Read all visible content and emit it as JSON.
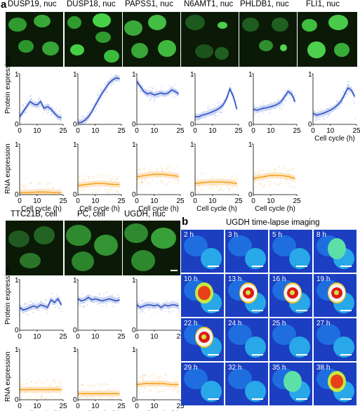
{
  "panel_a": {
    "letter": "a"
  },
  "panel_b": {
    "letter": "b",
    "title": "UGDH time-lapse imaging"
  },
  "genes_row1": [
    "DUSP19, nuc",
    "DUSP18, nuc",
    "PAPSS1, nuc",
    "N6AMT1, nuc",
    "PHLDB1, nuc",
    "FLI1, nuc"
  ],
  "genes_row2": [
    "TTC21B, cell",
    "PC, cell",
    "UGDH, nuc"
  ],
  "axis": {
    "protein_label": "Protein expression",
    "rna_label": "RNA expression",
    "x_label": "Cell cycle (h)",
    "y_ticks": [
      "0",
      "1"
    ],
    "x_ticks": [
      "0",
      "10",
      "25"
    ]
  },
  "timelapse": [
    "2 h",
    "3 h",
    "5 h",
    "8 h",
    "10 h",
    "13 h",
    "16 h",
    "19 h",
    "22 h",
    "24 h",
    "25 h",
    "27 h",
    "29 h",
    "32 h",
    "35 h",
    "38 h"
  ],
  "colors": {
    "protein": "#2b4fc4",
    "protein_light": "#a9b8ea",
    "rna": "#f7a21b",
    "rna_light": "#fbd49a",
    "micro_green": "#3cc43c"
  },
  "chart_data": [
    {
      "type": "line",
      "gene": "DUSP19, nuc",
      "metric": "Protein expression",
      "x": [
        0,
        2,
        4,
        6,
        8,
        10,
        12,
        14,
        16,
        18,
        20,
        22,
        24
      ],
      "y": [
        0.15,
        0.25,
        0.35,
        0.45,
        0.4,
        0.38,
        0.45,
        0.32,
        0.35,
        0.3,
        0.22,
        0.15,
        0.13
      ],
      "xlim": [
        0,
        25
      ],
      "ylim": [
        0,
        1
      ]
    },
    {
      "type": "line",
      "gene": "DUSP18, nuc",
      "metric": "Protein expression",
      "x": [
        0,
        2,
        4,
        6,
        8,
        10,
        12,
        14,
        16,
        18,
        20,
        22,
        24
      ],
      "y": [
        0.03,
        0.04,
        0.08,
        0.15,
        0.25,
        0.38,
        0.5,
        0.62,
        0.72,
        0.82,
        0.88,
        0.92,
        0.9
      ],
      "xlim": [
        0,
        25
      ],
      "ylim": [
        0,
        1
      ]
    },
    {
      "type": "line",
      "gene": "PAPSS1, nuc",
      "metric": "Protein expression",
      "x": [
        0,
        2,
        4,
        6,
        8,
        10,
        12,
        14,
        16,
        18,
        20,
        22,
        24
      ],
      "y": [
        0.85,
        0.75,
        0.65,
        0.6,
        0.62,
        0.58,
        0.6,
        0.62,
        0.6,
        0.62,
        0.68,
        0.65,
        0.6
      ],
      "xlim": [
        0,
        25
      ],
      "ylim": [
        0,
        1
      ]
    },
    {
      "type": "line",
      "gene": "N6AMT1, nuc",
      "metric": "Protein expression",
      "x": [
        0,
        2,
        4,
        6,
        8,
        10,
        12,
        14,
        16,
        18,
        20,
        22,
        24
      ],
      "y": [
        0.15,
        0.15,
        0.18,
        0.2,
        0.22,
        0.25,
        0.28,
        0.32,
        0.38,
        0.5,
        0.7,
        0.55,
        0.3
      ],
      "xlim": [
        0,
        25
      ],
      "ylim": [
        0,
        1
      ]
    },
    {
      "type": "line",
      "gene": "PHLDB1, nuc",
      "metric": "Protein expression",
      "x": [
        0,
        2,
        4,
        6,
        8,
        10,
        12,
        14,
        16,
        18,
        20,
        22,
        24
      ],
      "y": [
        0.3,
        0.28,
        0.3,
        0.32,
        0.33,
        0.35,
        0.37,
        0.4,
        0.45,
        0.55,
        0.65,
        0.6,
        0.45
      ],
      "xlim": [
        0,
        25
      ],
      "ylim": [
        0,
        1
      ]
    },
    {
      "type": "line",
      "gene": "FLI1, nuc",
      "metric": "Protein expression",
      "x": [
        0,
        2,
        4,
        6,
        8,
        10,
        12,
        14,
        16,
        18,
        20,
        22,
        24
      ],
      "y": [
        0.22,
        0.18,
        0.2,
        0.22,
        0.25,
        0.28,
        0.32,
        0.38,
        0.45,
        0.58,
        0.72,
        0.68,
        0.55
      ],
      "xlim": [
        0,
        25
      ],
      "ylim": [
        0,
        1
      ]
    },
    {
      "type": "line",
      "gene": "DUSP19, nuc",
      "metric": "RNA expression",
      "x": [
        0,
        5,
        10,
        15,
        20,
        24
      ],
      "y": [
        0.04,
        0.04,
        0.05,
        0.05,
        0.04,
        0.04
      ],
      "xlim": [
        0,
        25
      ],
      "ylim": [
        0,
        1
      ]
    },
    {
      "type": "line",
      "gene": "DUSP18, nuc",
      "metric": "RNA expression",
      "x": [
        0,
        5,
        10,
        15,
        20,
        24
      ],
      "y": [
        0.18,
        0.2,
        0.22,
        0.22,
        0.2,
        0.2
      ],
      "xlim": [
        0,
        25
      ],
      "ylim": [
        0,
        1
      ]
    },
    {
      "type": "line",
      "gene": "PAPSS1, nuc",
      "metric": "RNA expression",
      "x": [
        0,
        5,
        10,
        15,
        20,
        24
      ],
      "y": [
        0.35,
        0.38,
        0.4,
        0.4,
        0.38,
        0.36
      ],
      "xlim": [
        0,
        25
      ],
      "ylim": [
        0,
        1
      ]
    },
    {
      "type": "line",
      "gene": "N6AMT1, nuc",
      "metric": "RNA expression",
      "x": [
        0,
        5,
        10,
        15,
        20,
        24
      ],
      "y": [
        0.22,
        0.24,
        0.25,
        0.25,
        0.24,
        0.22
      ],
      "xlim": [
        0,
        25
      ],
      "ylim": [
        0,
        1
      ]
    },
    {
      "type": "line",
      "gene": "PHLDB1, nuc",
      "metric": "RNA expression",
      "x": [
        0,
        5,
        10,
        15,
        20,
        24
      ],
      "y": [
        0.32,
        0.35,
        0.38,
        0.38,
        0.36,
        0.32
      ],
      "xlim": [
        0,
        25
      ],
      "ylim": [
        0,
        1
      ]
    },
    {
      "type": "line",
      "gene": "TTC21B, cell",
      "metric": "Protein expression",
      "x": [
        0,
        2,
        4,
        6,
        8,
        10,
        12,
        14,
        16,
        18,
        20,
        22,
        24
      ],
      "y": [
        0.45,
        0.4,
        0.42,
        0.45,
        0.48,
        0.45,
        0.5,
        0.48,
        0.45,
        0.6,
        0.55,
        0.62,
        0.5
      ],
      "xlim": [
        0,
        25
      ],
      "ylim": [
        0,
        1
      ]
    },
    {
      "type": "line",
      "gene": "PC, cell",
      "metric": "Protein expression",
      "x": [
        0,
        2,
        4,
        6,
        8,
        10,
        12,
        14,
        16,
        18,
        20,
        22,
        24
      ],
      "y": [
        0.62,
        0.58,
        0.6,
        0.65,
        0.6,
        0.62,
        0.6,
        0.58,
        0.6,
        0.62,
        0.6,
        0.58,
        0.6
      ],
      "xlim": [
        0,
        25
      ],
      "ylim": [
        0,
        1
      ]
    },
    {
      "type": "line",
      "gene": "UGDH, nuc",
      "metric": "Protein expression",
      "x": [
        0,
        2,
        4,
        6,
        8,
        10,
        12,
        14,
        16,
        18,
        20,
        22,
        24
      ],
      "y": [
        0.5,
        0.45,
        0.48,
        0.5,
        0.5,
        0.48,
        0.5,
        0.45,
        0.5,
        0.48,
        0.5,
        0.5,
        0.48
      ],
      "xlim": [
        0,
        25
      ],
      "ylim": [
        0,
        1
      ]
    },
    {
      "type": "line",
      "gene": "TTC21B, cell",
      "metric": "RNA expression",
      "x": [
        0,
        5,
        10,
        15,
        20,
        24
      ],
      "y": [
        0.2,
        0.2,
        0.2,
        0.2,
        0.2,
        0.2
      ],
      "xlim": [
        0,
        25
      ],
      "ylim": [
        0,
        1
      ]
    },
    {
      "type": "line",
      "gene": "PC, cell",
      "metric": "RNA expression",
      "x": [
        0,
        5,
        10,
        15,
        20,
        24
      ],
      "y": [
        0.12,
        0.12,
        0.12,
        0.12,
        0.12,
        0.12
      ],
      "xlim": [
        0,
        25
      ],
      "ylim": [
        0,
        1
      ]
    },
    {
      "type": "line",
      "gene": "UGDH, nuc",
      "metric": "RNA expression",
      "x": [
        0,
        5,
        10,
        15,
        20,
        24
      ],
      "y": [
        0.3,
        0.32,
        0.32,
        0.32,
        0.3,
        0.3
      ],
      "xlim": [
        0,
        25
      ],
      "ylim": [
        0,
        1
      ]
    }
  ]
}
